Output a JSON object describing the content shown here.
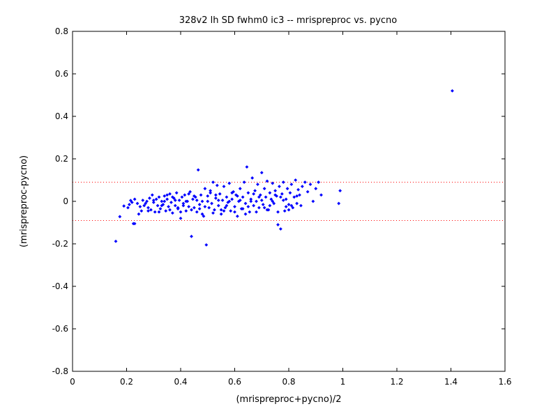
{
  "chart_data": {
    "type": "scatter",
    "title": "328v2 lh SD fwhm0 ic3 -- mrispreproc vs. pycno",
    "xlabel": "(mrispreproc+pycno)/2",
    "ylabel": "(mrispreproc-pycno)",
    "xlim": [
      0,
      1.6
    ],
    "ylim": [
      -0.8,
      0.8
    ],
    "xticks": [
      "0",
      "0.2",
      "0.4",
      "0.6",
      "0.8",
      "1",
      "1.2",
      "1.4",
      "1.6"
    ],
    "yticks": [
      "0.8",
      "0.6",
      "0.4",
      "0.2",
      "0",
      "-0.2",
      "-0.4",
      "-0.6",
      "-0.8"
    ],
    "grid": false,
    "point_color": "#0000ff",
    "reference_lines": [
      {
        "y": 0.09,
        "color": "#ff0000",
        "style": "dotted"
      },
      {
        "y": -0.09,
        "color": "#ff0000",
        "style": "dotted"
      }
    ],
    "series": [
      {
        "points": [
          [
            0.16,
            -0.188
          ],
          [
            0.175,
            -0.072
          ],
          [
            0.19,
            -0.022
          ],
          [
            0.205,
            -0.03
          ],
          [
            0.21,
            -0.015
          ],
          [
            0.215,
            0.004
          ],
          [
            0.22,
            -0.005
          ],
          [
            0.225,
            -0.105
          ],
          [
            0.23,
            -0.105
          ],
          [
            0.23,
            0.01
          ],
          [
            0.24,
            -0.01
          ],
          [
            0.245,
            -0.06
          ],
          [
            0.25,
            -0.025
          ],
          [
            0.255,
            -0.045
          ],
          [
            0.26,
            0.005
          ],
          [
            0.265,
            -0.02
          ],
          [
            0.27,
            -0.01
          ],
          [
            0.275,
            0.0
          ],
          [
            0.28,
            -0.03
          ],
          [
            0.285,
            0.015
          ],
          [
            0.29,
            -0.04
          ],
          [
            0.295,
            0.03
          ],
          [
            0.3,
            -0.005
          ],
          [
            0.305,
            -0.05
          ],
          [
            0.31,
            0.01
          ],
          [
            0.315,
            -0.02
          ],
          [
            0.32,
            0.02
          ],
          [
            0.325,
            -0.035
          ],
          [
            0.33,
            0.0
          ],
          [
            0.335,
            -0.015
          ],
          [
            0.34,
            0.025
          ],
          [
            0.345,
            -0.045
          ],
          [
            0.35,
            0.01
          ],
          [
            0.355,
            -0.025
          ],
          [
            0.36,
            0.035
          ],
          [
            0.365,
            -0.005
          ],
          [
            0.37,
            -0.055
          ],
          [
            0.375,
            0.015
          ],
          [
            0.38,
            -0.02
          ],
          [
            0.385,
            0.04
          ],
          [
            0.39,
            -0.035
          ],
          [
            0.395,
            0.005
          ],
          [
            0.4,
            -0.08
          ],
          [
            0.405,
            0.02
          ],
          [
            0.41,
            -0.01
          ],
          [
            0.415,
            0.03
          ],
          [
            0.42,
            -0.045
          ],
          [
            0.425,
            0.0
          ],
          [
            0.43,
            -0.025
          ],
          [
            0.435,
            0.045
          ],
          [
            0.44,
            -0.165
          ],
          [
            0.445,
            0.01
          ],
          [
            0.45,
            -0.03
          ],
          [
            0.455,
            0.02
          ],
          [
            0.46,
            -0.05
          ],
          [
            0.465,
            0.148
          ],
          [
            0.47,
            -0.015
          ],
          [
            0.475,
            0.03
          ],
          [
            0.48,
            0.0
          ],
          [
            0.485,
            -0.07
          ],
          [
            0.49,
            0.06
          ],
          [
            0.495,
            -0.205
          ],
          [
            0.5,
            0.025
          ],
          [
            0.505,
            -0.03
          ],
          [
            0.51,
            0.05
          ],
          [
            0.515,
            -0.01
          ],
          [
            0.52,
            0.09
          ],
          [
            0.525,
            -0.04
          ],
          [
            0.53,
            0.015
          ],
          [
            0.535,
            0.075
          ],
          [
            0.54,
            -0.02
          ],
          [
            0.545,
            0.035
          ],
          [
            0.55,
            -0.06
          ],
          [
            0.555,
            0.005
          ],
          [
            0.56,
            0.07
          ],
          [
            0.565,
            -0.03
          ],
          [
            0.57,
            0.02
          ],
          [
            0.575,
            -0.005
          ],
          [
            0.58,
            0.085
          ],
          [
            0.585,
            -0.045
          ],
          [
            0.59,
            0.01
          ],
          [
            0.595,
            0.045
          ],
          [
            0.6,
            -0.025
          ],
          [
            0.605,
            0.03
          ],
          [
            0.61,
            -0.07
          ],
          [
            0.615,
            0.0
          ],
          [
            0.62,
            0.06
          ],
          [
            0.625,
            -0.035
          ],
          [
            0.63,
            0.02
          ],
          [
            0.635,
            0.09
          ],
          [
            0.64,
            -0.01
          ],
          [
            0.645,
            0.162
          ],
          [
            0.65,
            0.04
          ],
          [
            0.655,
            -0.05
          ],
          [
            0.66,
            0.01
          ],
          [
            0.665,
            0.11
          ],
          [
            0.67,
            -0.02
          ],
          [
            0.675,
            0.05
          ],
          [
            0.68,
            0.0
          ],
          [
            0.685,
            0.08
          ],
          [
            0.69,
            -0.03
          ],
          [
            0.695,
            0.03
          ],
          [
            0.7,
            0.135
          ],
          [
            0.705,
            -0.015
          ],
          [
            0.71,
            0.06
          ],
          [
            0.715,
            0.02
          ],
          [
            0.72,
            0.095
          ],
          [
            0.725,
            -0.04
          ],
          [
            0.73,
            0.04
          ],
          [
            0.735,
            0.01
          ],
          [
            0.74,
            0.085
          ],
          [
            0.745,
            -0.01
          ],
          [
            0.75,
            0.05
          ],
          [
            0.755,
            0.025
          ],
          [
            0.76,
            -0.11
          ],
          [
            0.765,
            0.07
          ],
          [
            0.77,
            -0.13
          ],
          [
            0.775,
            0.035
          ],
          [
            0.78,
            0.09
          ],
          [
            0.785,
            -0.045
          ],
          [
            0.79,
            0.01
          ],
          [
            0.795,
            0.06
          ],
          [
            0.8,
            -0.015
          ],
          [
            0.805,
            0.04
          ],
          [
            0.81,
            0.08
          ],
          [
            0.815,
            -0.03
          ],
          [
            0.82,
            0.02
          ],
          [
            0.825,
            0.1
          ],
          [
            0.83,
            -0.01
          ],
          [
            0.835,
            0.055
          ],
          [
            0.84,
            0.03
          ],
          [
            0.845,
            -0.02
          ],
          [
            0.85,
            0.07
          ],
          [
            0.86,
            0.09
          ],
          [
            0.87,
            0.045
          ],
          [
            0.88,
            0.08
          ],
          [
            0.89,
            0.0
          ],
          [
            0.9,
            0.06
          ],
          [
            0.91,
            0.09
          ],
          [
            0.92,
            0.03
          ],
          [
            0.985,
            -0.01
          ],
          [
            0.99,
            0.05
          ],
          [
            1.405,
            0.52
          ],
          [
            0.28,
            -0.045
          ],
          [
            0.32,
            -0.05
          ],
          [
            0.36,
            -0.04
          ],
          [
            0.4,
            -0.05
          ],
          [
            0.44,
            -0.04
          ],
          [
            0.48,
            -0.06
          ],
          [
            0.52,
            -0.055
          ],
          [
            0.56,
            -0.045
          ],
          [
            0.6,
            -0.05
          ],
          [
            0.64,
            -0.06
          ],
          [
            0.68,
            -0.05
          ],
          [
            0.72,
            -0.04
          ],
          [
            0.76,
            -0.05
          ],
          [
            0.8,
            -0.04
          ],
          [
            0.3,
            0.005
          ],
          [
            0.34,
            0.0
          ],
          [
            0.38,
            0.005
          ],
          [
            0.42,
            0.0
          ],
          [
            0.46,
            0.005
          ],
          [
            0.5,
            0.0
          ],
          [
            0.54,
            0.005
          ],
          [
            0.58,
            0.0
          ],
          [
            0.62,
            0.005
          ],
          [
            0.66,
            0.0
          ],
          [
            0.7,
            0.005
          ],
          [
            0.74,
            0.0
          ],
          [
            0.78,
            0.005
          ],
          [
            0.33,
            -0.02
          ],
          [
            0.37,
            0.02
          ],
          [
            0.41,
            -0.02
          ],
          [
            0.45,
            0.025
          ],
          [
            0.49,
            -0.025
          ],
          [
            0.53,
            0.03
          ],
          [
            0.57,
            -0.02
          ],
          [
            0.61,
            0.025
          ],
          [
            0.65,
            -0.025
          ],
          [
            0.69,
            0.02
          ],
          [
            0.73,
            -0.02
          ],
          [
            0.77,
            0.02
          ],
          [
            0.81,
            -0.02
          ],
          [
            0.35,
            0.03
          ],
          [
            0.39,
            -0.03
          ],
          [
            0.43,
            0.035
          ],
          [
            0.47,
            -0.035
          ],
          [
            0.51,
            0.04
          ],
          [
            0.55,
            -0.04
          ],
          [
            0.59,
            0.04
          ],
          [
            0.63,
            -0.035
          ],
          [
            0.67,
            0.035
          ],
          [
            0.71,
            -0.03
          ],
          [
            0.75,
            0.03
          ],
          [
            0.79,
            -0.025
          ],
          [
            0.83,
            0.025
          ]
        ]
      }
    ]
  }
}
